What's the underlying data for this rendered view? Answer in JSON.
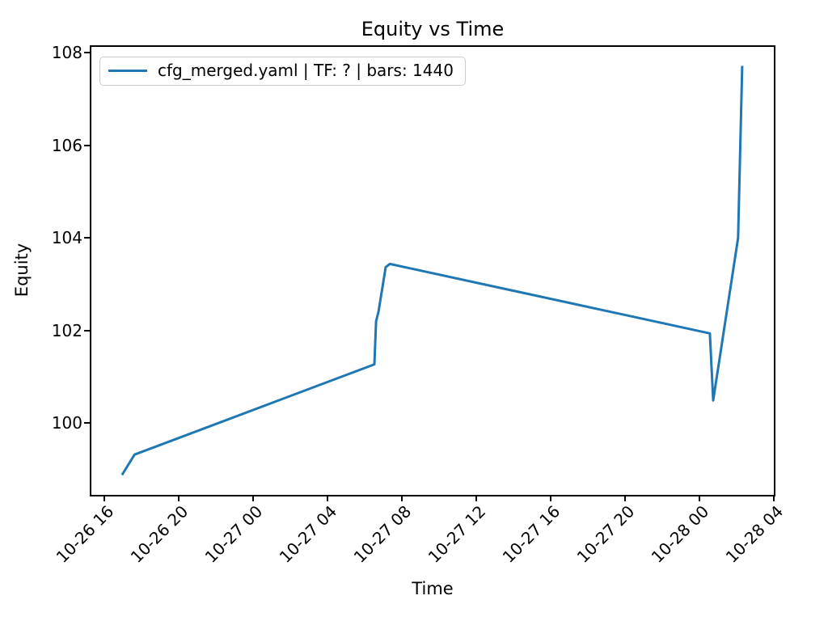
{
  "chart": {
    "title": "Equity vs Time",
    "xlabel": "Time",
    "ylabel": "Equity"
  },
  "legend": {
    "label": "cfg_merged.yaml | TF: ? | bars: 1440",
    "position": "upper left"
  },
  "colors": {
    "line": "#1f77b4",
    "spine": "#000000",
    "legend_border": "#cccccc",
    "background": "#ffffff",
    "text": "#000000"
  },
  "chart_data": {
    "type": "line",
    "title": "Equity vs Time",
    "xlabel": "Time",
    "ylabel": "Equity",
    "grid": false,
    "legend_position": "upper left",
    "x_unit": "hours since 10-26 00:00",
    "xlim_hours": [
      15.3,
      52.0
    ],
    "ylim": [
      98.45,
      108.13
    ],
    "x_ticks": [
      {
        "hours": 16,
        "label": "10-26 16"
      },
      {
        "hours": 20,
        "label": "10-26 20"
      },
      {
        "hours": 24,
        "label": "10-27 00"
      },
      {
        "hours": 28,
        "label": "10-27 04"
      },
      {
        "hours": 32,
        "label": "10-27 08"
      },
      {
        "hours": 36,
        "label": "10-27 12"
      },
      {
        "hours": 40,
        "label": "10-27 16"
      },
      {
        "hours": 44,
        "label": "10-27 20"
      },
      {
        "hours": 48,
        "label": "10-28 00"
      },
      {
        "hours": 52,
        "label": "10-28 04"
      }
    ],
    "y_ticks": [
      {
        "value": 100,
        "label": "100"
      },
      {
        "value": 102,
        "label": "102"
      },
      {
        "value": 104,
        "label": "104"
      },
      {
        "value": 106,
        "label": "106"
      },
      {
        "value": 108,
        "label": "108"
      }
    ],
    "series": [
      {
        "name": "cfg_merged.yaml | TF: ? | bars: 1440",
        "color": "#1f77b4",
        "points": [
          {
            "time": "10-26 16:57",
            "hours": 16.95,
            "equity": 98.88
          },
          {
            "time": "10-26 17:37",
            "hours": 17.62,
            "equity": 99.32
          },
          {
            "time": "10-27 06:31",
            "hours": 30.52,
            "equity": 101.27
          },
          {
            "time": "10-27 06:37",
            "hours": 30.61,
            "equity": 102.2
          },
          {
            "time": "10-27 06:44",
            "hours": 30.74,
            "equity": 102.41
          },
          {
            "time": "10-27 07:08",
            "hours": 31.13,
            "equity": 103.37
          },
          {
            "time": "10-27 07:21",
            "hours": 31.35,
            "equity": 103.44
          },
          {
            "time": "10-28 00:34",
            "hours": 48.56,
            "equity": 101.94
          },
          {
            "time": "10-28 00:44",
            "hours": 48.74,
            "equity": 100.49
          },
          {
            "time": "10-28 02:05",
            "hours": 50.08,
            "equity": 104.0
          },
          {
            "time": "10-28 02:18",
            "hours": 50.3,
            "equity": 107.72
          }
        ]
      }
    ]
  }
}
